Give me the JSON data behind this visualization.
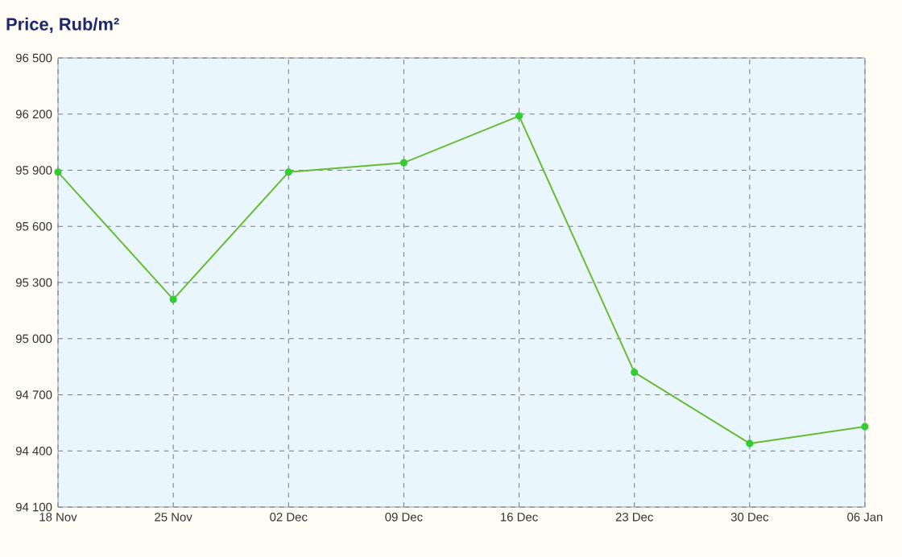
{
  "chart_data": {
    "type": "line",
    "title": "Price, Rub/m²",
    "categories": [
      "18 Nov",
      "25 Nov",
      "02 Dec",
      "09 Dec",
      "16 Dec",
      "23 Dec",
      "30 Dec",
      "06 Jan"
    ],
    "values": [
      95890,
      95210,
      95890,
      95940,
      96190,
      94820,
      94440,
      94530
    ],
    "color": "#66bb33",
    "marker": "circle",
    "grid": true,
    "ylim": [
      94100,
      96500
    ],
    "yticks": [
      {
        "value": 94100,
        "label": "94 100"
      },
      {
        "value": 94400,
        "label": "94 400"
      },
      {
        "value": 94700,
        "label": "94 700"
      },
      {
        "value": 95000,
        "label": "95 000"
      },
      {
        "value": 95300,
        "label": "95 300"
      },
      {
        "value": 95600,
        "label": "95 600"
      },
      {
        "value": 95900,
        "label": "95 900"
      },
      {
        "value": 96200,
        "label": "96 200"
      },
      {
        "value": 96500,
        "label": "96 500"
      }
    ]
  }
}
